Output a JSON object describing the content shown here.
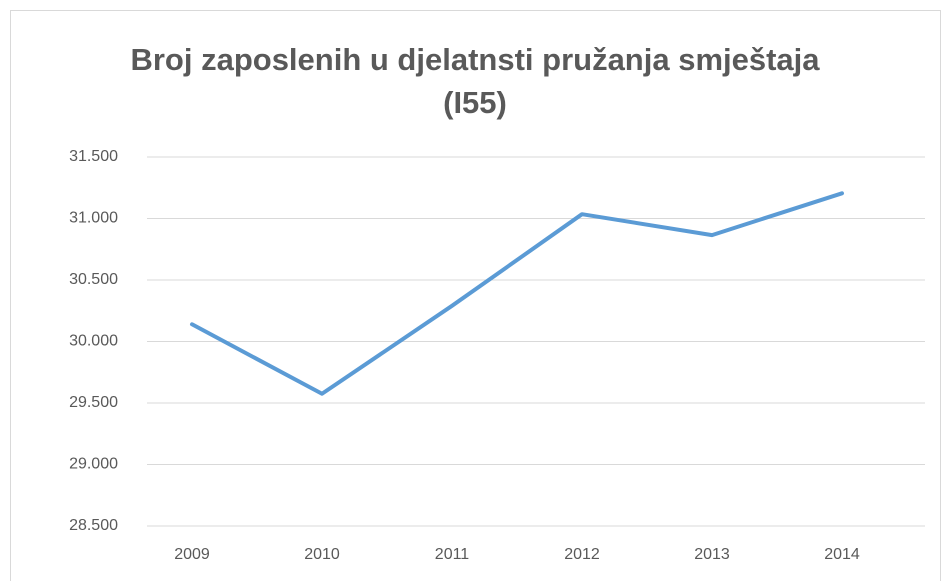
{
  "chart_data": {
    "type": "line",
    "title": "Broj zaposlenih u djelatnsti pružanja smještaja (I55)",
    "categories": [
      "2009",
      "2010",
      "2011",
      "2012",
      "2013",
      "2014"
    ],
    "series": [
      {
        "name": "I55",
        "color": "#5b9bd5",
        "values": [
          30140,
          29575,
          30290,
          31035,
          30865,
          31205
        ]
      }
    ],
    "ylim": [
      28500,
      31500
    ],
    "yticks": [
      {
        "value": 28500,
        "label": "28.500"
      },
      {
        "value": 29000,
        "label": "29.000"
      },
      {
        "value": 29500,
        "label": "29.500"
      },
      {
        "value": 30000,
        "label": "30.000"
      },
      {
        "value": 30500,
        "label": "30.500"
      },
      {
        "value": 31000,
        "label": "31.000"
      },
      {
        "value": 31500,
        "label": "31.500"
      }
    ],
    "grid": true
  }
}
